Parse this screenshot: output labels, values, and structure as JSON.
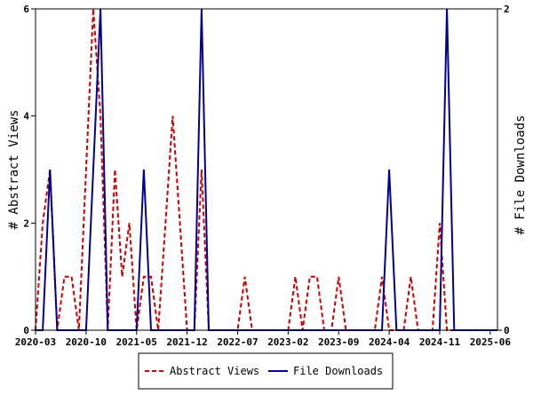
{
  "chart_data": {
    "type": "line",
    "x_dates": [
      "2020-03-01",
      "2020-04-01",
      "2020-05-01",
      "2020-06-01",
      "2020-07-01",
      "2020-08-01",
      "2020-09-01",
      "2020-10-01",
      "2020-11-01",
      "2020-12-01",
      "2021-01-01",
      "2021-02-01",
      "2021-03-01",
      "2021-04-01",
      "2021-05-01",
      "2021-06-01",
      "2021-07-01",
      "2021-08-01",
      "2021-09-01",
      "2021-10-01",
      "2021-11-01",
      "2021-12-01",
      "2022-01-01",
      "2022-02-01",
      "2022-03-01",
      "2022-04-01",
      "2022-05-01",
      "2022-06-01",
      "2022-07-01",
      "2022-08-01",
      "2022-09-01",
      "2022-10-01",
      "2022-11-01",
      "2022-12-01",
      "2023-01-01",
      "2023-02-01",
      "2023-03-01",
      "2023-04-01",
      "2023-05-01",
      "2023-06-01",
      "2023-07-01",
      "2023-08-01",
      "2023-09-01",
      "2023-10-01",
      "2023-11-01",
      "2023-12-01",
      "2024-01-01",
      "2024-02-01",
      "2024-03-01",
      "2024-04-01",
      "2024-05-01",
      "2024-06-01",
      "2024-07-01",
      "2024-08-01",
      "2024-09-01",
      "2024-10-01",
      "2024-11-01",
      "2024-12-01",
      "2025-01-01",
      "2025-02-01",
      "2025-03-01",
      "2025-04-01",
      "2025-05-01",
      "2025-06-01",
      "2025-07-01"
    ],
    "series": [
      {
        "name": "Abstract Views",
        "axis": "left",
        "color": "#cc0000",
        "dash": "dashed",
        "values": [
          0,
          2,
          3,
          0,
          1,
          1,
          0,
          3,
          6,
          4,
          0,
          3,
          1,
          2,
          0,
          1,
          1,
          0,
          2,
          4,
          2,
          0,
          0,
          3,
          0,
          0,
          0,
          0,
          0,
          1,
          0,
          0,
          0,
          0,
          0,
          0,
          1,
          0,
          1,
          1,
          0,
          0,
          1,
          0,
          0,
          0,
          0,
          0,
          1,
          0,
          0,
          0,
          1,
          0,
          0,
          0,
          2,
          0,
          0,
          0,
          0,
          0,
          0,
          0,
          0
        ]
      },
      {
        "name": "File Downloads",
        "axis": "right",
        "color": "#000099",
        "dash": "solid",
        "values": [
          0,
          0,
          1,
          0,
          0,
          0,
          0,
          0,
          1,
          2,
          0,
          0,
          0,
          0,
          0,
          1,
          0,
          0,
          0,
          0,
          0,
          0,
          0,
          2,
          0,
          0,
          0,
          0,
          0,
          0,
          0,
          0,
          0,
          0,
          0,
          0,
          0,
          0,
          0,
          0,
          0,
          0,
          0,
          0,
          0,
          0,
          0,
          0,
          0,
          1,
          0,
          0,
          0,
          0,
          0,
          0,
          0,
          2,
          0,
          0,
          0,
          0,
          0,
          0,
          0
        ]
      }
    ],
    "x_tick_labels": [
      "2020-03",
      "2020-10",
      "2021-05",
      "2021-12",
      "2022-07",
      "2023-02",
      "2023-09",
      "2024-04",
      "2024-11",
      "2025-06"
    ],
    "y_left": {
      "label": "# Abstract Views",
      "ticks": [
        "0",
        "2",
        "4",
        "6"
      ],
      "lim": [
        0,
        6
      ]
    },
    "y_right": {
      "label": "# File Downloads",
      "ticks": [
        "0",
        "2"
      ],
      "lim": [
        0,
        2
      ]
    },
    "legend": {
      "position": "bottom",
      "entries": [
        "Abstract Views",
        "File Downloads"
      ]
    },
    "grid": false
  }
}
